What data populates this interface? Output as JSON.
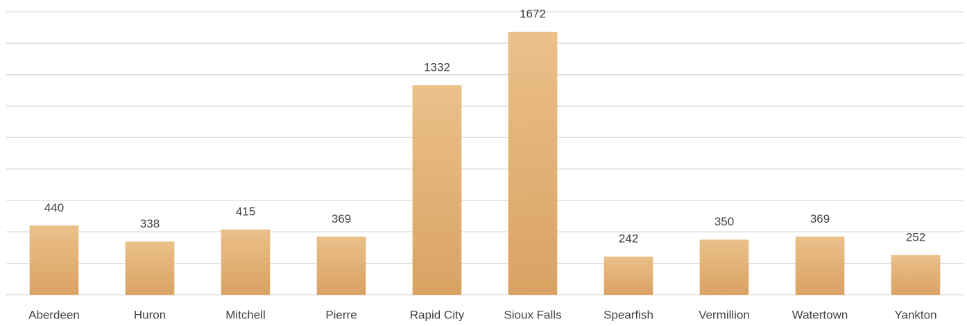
{
  "chart_data": {
    "type": "bar",
    "categories": [
      "Aberdeen",
      "Huron",
      "Mitchell",
      "Pierre",
      "Rapid City",
      "Sioux Falls",
      "Spearfish",
      "Vermillion",
      "Watertown",
      "Yankton"
    ],
    "values": [
      440,
      338,
      415,
      369,
      1332,
      1672,
      242,
      350,
      369,
      252
    ],
    "color": "#e6b274",
    "ylim": [
      0,
      1800
    ],
    "yticks": [
      0,
      200,
      400,
      600,
      800,
      1000,
      1200,
      1400,
      1600,
      1800
    ],
    "grid": true
  }
}
